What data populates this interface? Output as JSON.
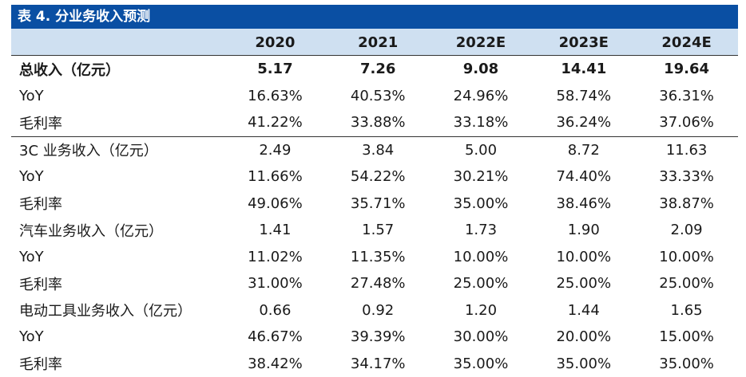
{
  "title": "表 4. 分业务收入预测",
  "columns": [
    "2020",
    "2021",
    "2022E",
    "2023E",
    "2024E"
  ],
  "rows": [
    {
      "label": "总收入（亿元）",
      "values": [
        "5.17",
        "7.26",
        "9.08",
        "14.41",
        "19.64"
      ]
    },
    {
      "label": "YoY",
      "values": [
        "16.63%",
        "40.53%",
        "24.96%",
        "58.74%",
        "36.31%"
      ]
    },
    {
      "label": "毛利率",
      "values": [
        "41.22%",
        "33.88%",
        "33.18%",
        "36.24%",
        "37.06%"
      ]
    },
    {
      "label": "3C 业务收入（亿元）",
      "values": [
        "2.49",
        "3.84",
        "5.00",
        "8.72",
        "11.63"
      ]
    },
    {
      "label": "YoY",
      "values": [
        "11.66%",
        "54.22%",
        "30.21%",
        "74.40%",
        "33.33%"
      ]
    },
    {
      "label": "毛利率",
      "values": [
        "49.06%",
        "35.71%",
        "35.00%",
        "38.46%",
        "38.87%"
      ]
    },
    {
      "label": "汽车业务收入（亿元）",
      "values": [
        "1.41",
        "1.57",
        "1.73",
        "1.90",
        "2.09"
      ]
    },
    {
      "label": "YoY",
      "values": [
        "11.02%",
        "11.35%",
        "10.00%",
        "10.00%",
        "10.00%"
      ]
    },
    {
      "label": "毛利率",
      "values": [
        "31.00%",
        "27.48%",
        "25.00%",
        "25.00%",
        "25.00%"
      ]
    },
    {
      "label": "电动工具业务收入（亿元）",
      "values": [
        "0.66",
        "0.92",
        "1.20",
        "1.44",
        "1.65"
      ]
    },
    {
      "label": "YoY",
      "values": [
        "46.67%",
        "39.39%",
        "30.00%",
        "20.00%",
        "15.00%"
      ]
    },
    {
      "label": "毛利率",
      "values": [
        "38.42%",
        "34.17%",
        "35.00%",
        "35.00%",
        "35.00%"
      ]
    }
  ]
}
